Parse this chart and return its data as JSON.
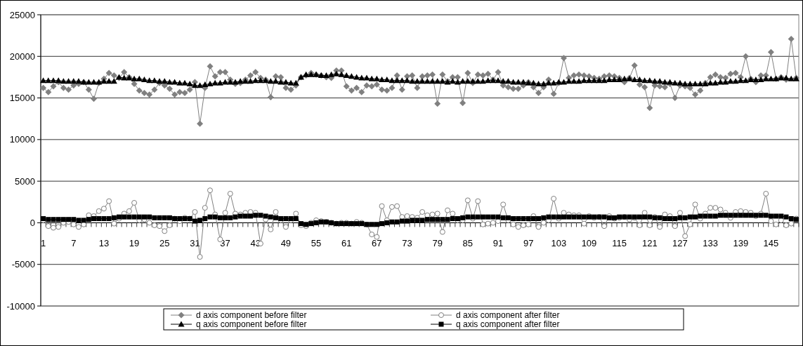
{
  "chart_data": {
    "type": "line",
    "categories": [
      "1",
      null,
      null,
      null,
      null,
      null,
      "7",
      null,
      null,
      null,
      null,
      null,
      "13",
      null,
      null,
      null,
      null,
      null,
      "19",
      null,
      null,
      null,
      null,
      null,
      "25",
      null,
      null,
      null,
      null,
      null,
      "31",
      null,
      null,
      null,
      null,
      null,
      "37",
      null,
      null,
      null,
      null,
      null,
      "43",
      null,
      null,
      null,
      null,
      null,
      "49",
      null,
      null,
      null,
      null,
      null,
      "55",
      null,
      null,
      null,
      null,
      null,
      "61",
      null,
      null,
      null,
      null,
      null,
      "67",
      null,
      null,
      null,
      null,
      null,
      "73",
      null,
      null,
      null,
      null,
      null,
      "79",
      null,
      null,
      null,
      null,
      null,
      "85",
      null,
      null,
      null,
      null,
      null,
      "91",
      null,
      null,
      null,
      null,
      null,
      "97",
      null,
      null,
      null,
      null,
      null,
      "103",
      null,
      null,
      null,
      null,
      null,
      "109",
      null,
      null,
      null,
      null,
      null,
      "115",
      null,
      null,
      null,
      null,
      null,
      "121",
      null,
      null,
      null,
      null,
      null,
      "127",
      null,
      null,
      null,
      null,
      null,
      "133",
      null,
      null,
      null,
      null,
      null,
      "139",
      null,
      null,
      null,
      null,
      null,
      "145",
      null,
      null,
      null,
      null,
      null
    ],
    "series": [
      {
        "name": "d axis component before filter",
        "color": "#808080",
        "marker": "diamond",
        "values": [
          16200,
          15700,
          16400,
          16900,
          16200,
          16000,
          16500,
          16700,
          16900,
          16000,
          14900,
          16800,
          17300,
          18000,
          17700,
          17400,
          18100,
          17500,
          16700,
          15900,
          15600,
          15400,
          16000,
          16800,
          16500,
          16100,
          15400,
          15700,
          15600,
          16000,
          16900,
          11900,
          16200,
          18800,
          17600,
          18100,
          18100,
          17200,
          16700,
          16800,
          17200,
          17700,
          18100,
          17400,
          17200,
          15100,
          17600,
          17500,
          16200,
          16000,
          16500,
          17500,
          17700,
          18000,
          17800,
          17700,
          17500,
          17400,
          18300,
          18300,
          16400,
          15900,
          16200,
          15700,
          16500,
          16400,
          16600,
          16000,
          15900,
          16200,
          17700,
          16000,
          17600,
          17700,
          16200,
          17600,
          17700,
          17800,
          14300,
          17800,
          17000,
          17500,
          17500,
          14400,
          18000,
          16800,
          17800,
          17700,
          17900,
          17200,
          18100,
          16500,
          16300,
          16100,
          16100,
          16500,
          16900,
          16300,
          15600,
          16300,
          17200,
          15500,
          16800,
          19800,
          17400,
          17700,
          17800,
          17700,
          17600,
          17400,
          17300,
          17600,
          17700,
          17600,
          17400,
          16900,
          17400,
          18900,
          16600,
          16300,
          13800,
          16500,
          16400,
          16300,
          16700,
          15000,
          16500,
          16400,
          16200,
          15400,
          15900,
          16800,
          17500,
          17800,
          17500,
          17400,
          17900,
          18000,
          17500,
          20000,
          17300,
          16900,
          17700,
          17700,
          20500,
          17300,
          17500,
          17200,
          22100,
          17400
        ]
      },
      {
        "name": "d axis component after filter",
        "color": "#808080",
        "marker": "circle",
        "values": [
          300,
          -400,
          -600,
          -500,
          0,
          100,
          -200,
          -500,
          -200,
          900,
          800,
          1400,
          1700,
          2600,
          -100,
          500,
          1100,
          1400,
          2400,
          300,
          400,
          0,
          -300,
          -400,
          -1000,
          -300,
          500,
          200,
          600,
          500,
          1300,
          -4100,
          1800,
          3900,
          1000,
          -2000,
          1200,
          3500,
          1100,
          1000,
          1200,
          1300,
          1200,
          -2500,
          400,
          -800,
          1300,
          300,
          -500,
          300,
          1100,
          -300,
          -400,
          0,
          300,
          200,
          100,
          0,
          -100,
          0,
          0,
          -100,
          100,
          0,
          -200,
          -1400,
          -1700,
          2000,
          300,
          1900,
          2000,
          700,
          800,
          700,
          600,
          1300,
          900,
          1000,
          1100,
          -1100,
          1500,
          1100,
          300,
          300,
          2700,
          500,
          2600,
          -200,
          -100,
          0,
          200,
          2200,
          300,
          -200,
          -500,
          -300,
          -200,
          800,
          -500,
          0,
          300,
          2900,
          500,
          1200,
          1000,
          900,
          900,
          -100,
          800,
          600,
          700,
          -400,
          800,
          500,
          600,
          700,
          400,
          600,
          -300,
          1200,
          -300,
          700,
          -500,
          1000,
          800,
          -400,
          1200,
          -1600,
          -200,
          2200,
          500,
          1100,
          1800,
          1800,
          1600,
          1200,
          600,
          1300,
          1400,
          1300,
          1200,
          800,
          1100,
          3500,
          200,
          -200,
          300,
          -300,
          -100,
          500
        ]
      },
      {
        "name": "q axis component before filter",
        "color": "#000000",
        "marker": "triangle",
        "values": [
          17100,
          17100,
          17100,
          17100,
          17000,
          17000,
          17000,
          17000,
          16900,
          16900,
          16900,
          16900,
          17000,
          17000,
          17000,
          17500,
          17400,
          17400,
          17300,
          17300,
          17200,
          17100,
          17100,
          17000,
          17000,
          16900,
          16900,
          16800,
          16800,
          16700,
          16500,
          16500,
          16600,
          16700,
          16800,
          16800,
          16900,
          16900,
          16900,
          17000,
          17000,
          17000,
          17100,
          17100,
          17100,
          17000,
          17000,
          16900,
          16900,
          16800,
          16800,
          17500,
          17800,
          17800,
          17800,
          17700,
          17700,
          17800,
          17900,
          17800,
          17700,
          17600,
          17500,
          17400,
          17400,
          17300,
          17300,
          17200,
          17200,
          17100,
          17100,
          17100,
          17100,
          17000,
          17000,
          17000,
          17000,
          17000,
          17000,
          17000,
          16900,
          17000,
          16900,
          17000,
          17000,
          17000,
          17000,
          17000,
          17100,
          17100,
          17100,
          17000,
          17000,
          16900,
          16900,
          16900,
          16800,
          16800,
          16700,
          16700,
          16800,
          16800,
          16900,
          16900,
          17000,
          17000,
          17000,
          17100,
          17100,
          17100,
          17100,
          17100,
          17200,
          17200,
          17200,
          17300,
          17300,
          17200,
          17200,
          17100,
          17100,
          17000,
          17000,
          16900,
          16900,
          16800,
          16800,
          16700,
          16700,
          16700,
          16700,
          16700,
          16800,
          16800,
          16900,
          16900,
          17000,
          17000,
          17100,
          17100,
          17200,
          17200,
          17200,
          17300,
          17300,
          17300,
          17400,
          17400,
          17300,
          17300
        ]
      },
      {
        "name": "q axis component after filter",
        "color": "#000000",
        "marker": "square",
        "values": [
          500,
          400,
          400,
          400,
          400,
          400,
          400,
          300,
          300,
          400,
          500,
          500,
          500,
          500,
          600,
          700,
          700,
          700,
          700,
          700,
          700,
          700,
          600,
          600,
          600,
          600,
          500,
          500,
          500,
          500,
          200,
          300,
          500,
          700,
          700,
          600,
          600,
          600,
          700,
          800,
          800,
          800,
          900,
          900,
          800,
          700,
          600,
          500,
          500,
          500,
          500,
          -100,
          -200,
          -100,
          0,
          100,
          100,
          0,
          -100,
          -100,
          -100,
          -100,
          -100,
          -100,
          -200,
          -200,
          -200,
          -100,
          0,
          100,
          100,
          200,
          200,
          300,
          300,
          300,
          400,
          400,
          400,
          400,
          400,
          500,
          500,
          600,
          700,
          700,
          700,
          700,
          700,
          700,
          700,
          600,
          600,
          500,
          500,
          500,
          500,
          500,
          500,
          600,
          700,
          700,
          700,
          700,
          700,
          700,
          700,
          700,
          700,
          700,
          700,
          700,
          600,
          600,
          700,
          700,
          700,
          700,
          700,
          700,
          700,
          600,
          600,
          500,
          500,
          500,
          600,
          600,
          700,
          700,
          800,
          800,
          800,
          800,
          900,
          900,
          900,
          900,
          900,
          900,
          900,
          900,
          900,
          900,
          800,
          800,
          800,
          700,
          500,
          400
        ]
      }
    ],
    "ylim": [
      -10000,
      25000
    ],
    "yticks": [
      -10000,
      -5000,
      0,
      5000,
      10000,
      15000,
      20000,
      25000
    ],
    "grid": "y",
    "legend": "bottom"
  }
}
